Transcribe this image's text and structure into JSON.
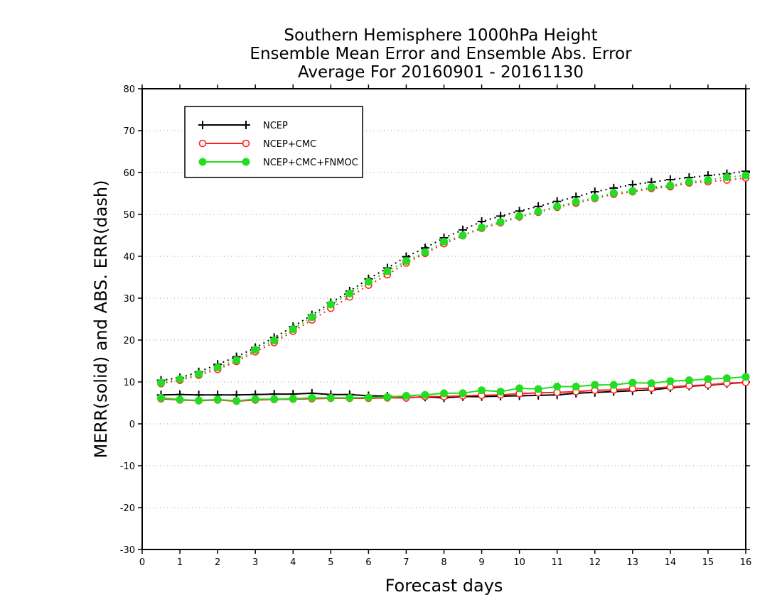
{
  "chart_data": {
    "type": "line",
    "title": [
      "Southern Hemisphere 1000hPa Height",
      "Ensemble Mean Error and Ensemble Abs. Error",
      "Average For 20160901 - 20161130"
    ],
    "xlabel": "Forecast days",
    "ylabel": "MERR(solid) and ABS. ERR(dash)",
    "xlim": [
      0,
      16
    ],
    "ylim": [
      -30,
      80
    ],
    "xticks": [
      "0",
      "1",
      "2",
      "3",
      "4",
      "5",
      "6",
      "7",
      "8",
      "9",
      "10",
      "11",
      "12",
      "13",
      "14",
      "15",
      "16"
    ],
    "yticks": [
      "-30",
      "-20",
      "-10",
      "0",
      "10",
      "20",
      "30",
      "40",
      "50",
      "60",
      "70",
      "80"
    ],
    "grid": "horizontal dotted",
    "legend_position": "top-left",
    "x": [
      0.5,
      1,
      1.5,
      2,
      2.5,
      3,
      3.5,
      4,
      4.5,
      5,
      5.5,
      6,
      6.5,
      7,
      7.5,
      8,
      8.5,
      9,
      9.5,
      10,
      10.5,
      11,
      11.5,
      12,
      12.5,
      13,
      13.5,
      14,
      14.5,
      15,
      15.5,
      16
    ],
    "series": [
      {
        "name": "NCEP",
        "color": "#000000",
        "marker": "plus",
        "merr": [
          6.9,
          7.0,
          6.9,
          6.9,
          6.9,
          7.0,
          7.1,
          7.1,
          7.3,
          7.0,
          7.0,
          6.7,
          6.6,
          6.3,
          6.4,
          6.2,
          6.5,
          6.5,
          6.6,
          6.7,
          6.8,
          6.9,
          7.3,
          7.5,
          7.7,
          7.9,
          8.1,
          8.6,
          9.0,
          9.2,
          9.6,
          9.9
        ],
        "abs_err": [
          10.4,
          11.0,
          12.4,
          14.2,
          16.0,
          18.2,
          20.6,
          23.2,
          26.0,
          28.9,
          31.7,
          34.6,
          37.2,
          39.9,
          42.0,
          44.4,
          46.3,
          48.3,
          49.6,
          50.8,
          51.9,
          53.1,
          54.2,
          55.4,
          56.3,
          57.1,
          57.7,
          58.3,
          58.8,
          59.3,
          59.7,
          60.3
        ]
      },
      {
        "name": "NCEP+CMC",
        "color": "#ff2020",
        "marker": "circle-open",
        "merr": [
          6.0,
          5.7,
          5.5,
          5.7,
          5.4,
          5.7,
          5.8,
          5.9,
          6.0,
          6.1,
          6.1,
          6.1,
          6.2,
          6.2,
          6.5,
          6.5,
          6.7,
          6.8,
          6.9,
          7.2,
          7.4,
          7.5,
          7.7,
          8.0,
          8.1,
          8.4,
          8.5,
          8.8,
          9.1,
          9.3,
          9.7,
          9.9
        ],
        "abs_err": [
          9.6,
          10.4,
          11.6,
          13.0,
          14.9,
          17.2,
          19.4,
          22.1,
          24.8,
          27.6,
          30.3,
          33.1,
          35.6,
          38.4,
          40.7,
          43.0,
          44.9,
          46.7,
          48.0,
          49.4,
          50.5,
          51.7,
          52.7,
          53.8,
          54.8,
          55.4,
          56.2,
          56.6,
          57.5,
          57.8,
          58.2,
          58.7
        ]
      },
      {
        "name": "NCEP+CMC+FNMOC",
        "color": "#22dd22",
        "marker": "circle-filled",
        "merr": [
          6.2,
          5.8,
          5.6,
          5.8,
          5.5,
          5.9,
          5.9,
          6.0,
          6.2,
          6.2,
          6.2,
          6.3,
          6.4,
          6.7,
          6.9,
          7.3,
          7.3,
          8.0,
          7.7,
          8.5,
          8.3,
          8.9,
          8.9,
          9.3,
          9.3,
          9.8,
          9.7,
          10.2,
          10.4,
          10.7,
          10.9,
          11.2
        ],
        "abs_err": [
          9.8,
          10.7,
          11.9,
          13.5,
          15.2,
          17.7,
          19.9,
          22.6,
          25.5,
          28.5,
          31.1,
          33.9,
          36.4,
          38.9,
          41.0,
          43.5,
          45.0,
          46.9,
          48.2,
          49.6,
          50.7,
          51.9,
          53.0,
          54.0,
          55.1,
          55.6,
          56.5,
          56.9,
          57.8,
          58.2,
          58.9,
          59.3
        ]
      }
    ]
  }
}
